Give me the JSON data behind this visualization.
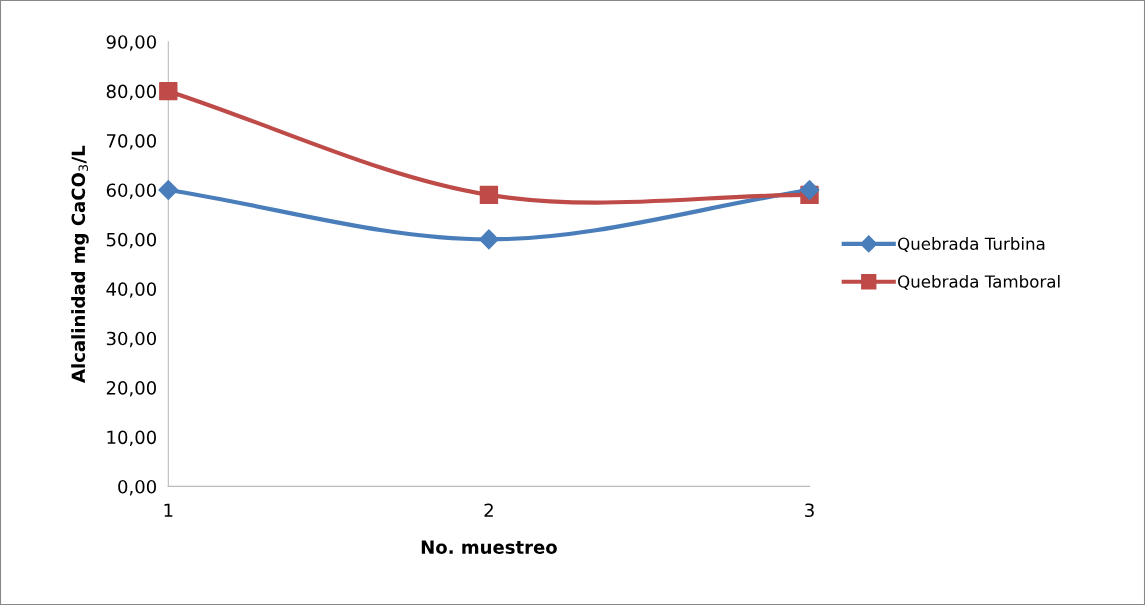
{
  "chart_data": {
    "type": "line",
    "xlabel": "No. muestreo",
    "ylabel": "Alcalinidad mg CaCO$_{3}$/L",
    "x": [
      1,
      2,
      3
    ],
    "xlim": [
      1,
      3
    ],
    "xticks": [
      1,
      2,
      3
    ],
    "ylim": [
      0,
      90
    ],
    "yticks": [
      {
        "value": 0,
        "label": "0,00"
      },
      {
        "value": 10,
        "label": "10,00"
      },
      {
        "value": 20,
        "label": "20,00"
      },
      {
        "value": 30,
        "label": "30,00"
      },
      {
        "value": 40,
        "label": "40,00"
      },
      {
        "value": 50,
        "label": "50,00"
      },
      {
        "value": 60,
        "label": "60,00"
      },
      {
        "value": 70,
        "label": "70,00"
      },
      {
        "value": 80,
        "label": "80,00"
      },
      {
        "value": 90,
        "label": "90,00"
      }
    ],
    "grid": false,
    "legend": "right",
    "line_style": "solid",
    "series": [
      {
        "name": "Quebrada Turbina",
        "color": "#4a7ebb",
        "marker": "diamond",
        "values": [
          60,
          50,
          60
        ]
      },
      {
        "name": "Quebrada Tamboral",
        "color": "#be4b48",
        "marker": "square",
        "values": [
          80,
          59,
          59
        ]
      }
    ]
  }
}
